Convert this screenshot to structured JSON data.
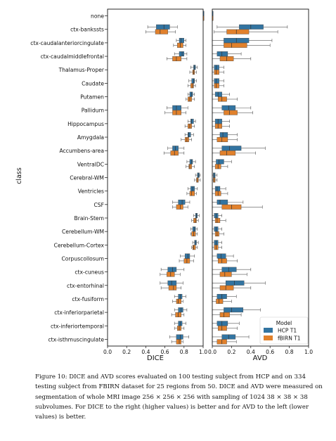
{
  "chart_data": {
    "type": "boxplot",
    "ylabel": "class",
    "categories": [
      "none",
      "ctx-bankssts",
      "ctx-caudalanteriorcingulate",
      "ctx-caudalmiddlefrontal",
      "Thalamus-Proper",
      "Caudate",
      "Putamen",
      "Pallidum",
      "Hippocampus",
      "Amygdala",
      "Accumbens-area",
      "VentralDC",
      "Cerebral-WM",
      "Ventricles",
      "CSF",
      "Brain-Stem",
      "Cerebellum-WM",
      "Cerebellum-Cortex",
      "Corpuscollosum",
      "ctx-cuneus",
      "ctx-entorhinal",
      "ctx-fusiform",
      "ctx-inferiorparietal",
      "ctx-inferiortemporal",
      "ctx-isthmuscingulate"
    ],
    "legend": {
      "title": "Model",
      "position": "bottom-right",
      "entries": [
        "HCP T1",
        "fBIRN T1"
      ]
    },
    "colors": {
      "hcp": "#3274a1",
      "fbirn": "#e1812c",
      "whisker": "#555555",
      "outlier": "#555555"
    },
    "panels": [
      {
        "xlabel": "DICE",
        "xlim": [
          0,
          1
        ],
        "ticks": [
          "0.0",
          "0.2",
          "0.4",
          "0.6",
          "0.8",
          "1.0"
        ],
        "series": [
          {
            "name": "HCP T1",
            "stats": [
              [
                1.0,
                1.0,
                1.0,
                1.0,
                1.0
              ],
              [
                0.42,
                0.51,
                0.59,
                0.65,
                0.73
              ],
              [
                0.72,
                0.75,
                0.77,
                0.8,
                0.82
              ],
              [
                0.7,
                0.75,
                0.78,
                0.8,
                0.83
              ],
              [
                0.87,
                0.9,
                0.91,
                0.92,
                0.94
              ],
              [
                0.85,
                0.88,
                0.9,
                0.91,
                0.93
              ],
              [
                0.84,
                0.86,
                0.88,
                0.89,
                0.91
              ],
              [
                0.62,
                0.68,
                0.72,
                0.77,
                0.84
              ],
              [
                0.84,
                0.87,
                0.88,
                0.9,
                0.92
              ],
              [
                0.81,
                0.84,
                0.85,
                0.87,
                0.9
              ],
              [
                0.63,
                0.68,
                0.71,
                0.74,
                0.8
              ],
              [
                0.83,
                0.86,
                0.88,
                0.89,
                0.92
              ],
              [
                0.92,
                0.94,
                0.95,
                0.96,
                0.97
              ],
              [
                0.84,
                0.87,
                0.89,
                0.91,
                0.94
              ],
              [
                0.68,
                0.74,
                0.78,
                0.81,
                0.86
              ],
              [
                0.9,
                0.92,
                0.93,
                0.94,
                0.96
              ],
              [
                0.87,
                0.89,
                0.91,
                0.92,
                0.94
              ],
              [
                0.89,
                0.91,
                0.92,
                0.93,
                0.95
              ],
              [
                0.76,
                0.81,
                0.84,
                0.86,
                0.91
              ],
              [
                0.56,
                0.63,
                0.68,
                0.72,
                0.8
              ],
              [
                0.55,
                0.63,
                0.67,
                0.72,
                0.79
              ],
              [
                0.7,
                0.74,
                0.76,
                0.78,
                0.82
              ],
              [
                0.7,
                0.74,
                0.77,
                0.79,
                0.83
              ],
              [
                0.7,
                0.74,
                0.76,
                0.78,
                0.82
              ],
              [
                0.65,
                0.72,
                0.76,
                0.79,
                0.85
              ]
            ]
          },
          {
            "name": "fBIRN T1",
            "stats": [
              [
                1.0,
                1.0,
                1.0,
                1.0,
                1.0
              ],
              [
                0.4,
                0.5,
                0.55,
                0.63,
                0.71
              ],
              [
                0.69,
                0.73,
                0.76,
                0.79,
                0.82
              ],
              [
                0.62,
                0.68,
                0.72,
                0.77,
                0.83
              ],
              [
                0.86,
                0.89,
                0.9,
                0.91,
                0.93
              ],
              [
                0.84,
                0.87,
                0.89,
                0.9,
                0.92
              ],
              [
                0.82,
                0.84,
                0.86,
                0.88,
                0.91
              ],
              [
                0.6,
                0.68,
                0.72,
                0.77,
                0.82
              ],
              [
                0.81,
                0.84,
                0.86,
                0.88,
                0.91
              ],
              [
                0.77,
                0.81,
                0.83,
                0.85,
                0.88
              ],
              [
                0.59,
                0.66,
                0.7,
                0.74,
                0.8
              ],
              [
                0.82,
                0.85,
                0.86,
                0.88,
                0.91
              ],
              [
                0.91,
                0.93,
                0.94,
                0.95,
                0.97
              ],
              [
                0.83,
                0.86,
                0.88,
                0.91,
                0.93
              ],
              [
                0.68,
                0.72,
                0.76,
                0.79,
                0.84
              ],
              [
                0.88,
                0.9,
                0.92,
                0.93,
                0.95
              ],
              [
                0.87,
                0.88,
                0.9,
                0.92,
                0.94
              ],
              [
                0.88,
                0.89,
                0.9,
                0.92,
                0.94
              ],
              [
                0.75,
                0.8,
                0.83,
                0.86,
                0.9
              ],
              [
                0.55,
                0.62,
                0.66,
                0.7,
                0.76
              ],
              [
                0.56,
                0.64,
                0.69,
                0.72,
                0.77
              ],
              [
                0.68,
                0.72,
                0.74,
                0.77,
                0.79
              ],
              [
                0.67,
                0.71,
                0.74,
                0.77,
                0.8
              ],
              [
                0.7,
                0.73,
                0.75,
                0.77,
                0.8
              ],
              [
                0.67,
                0.72,
                0.75,
                0.77,
                0.79
              ]
            ]
          }
        ]
      },
      {
        "xlabel": "AVD",
        "xlim": [
          0,
          1
        ],
        "ticks": [
          "0.0",
          "0.2",
          "0.4",
          "0.6",
          "0.8",
          "1.0"
        ],
        "series": [
          {
            "name": "HCP T1",
            "stats": [
              [
                0.0,
                0.0,
                0.0,
                0.0,
                0.0
              ],
              [
                0.05,
                0.28,
                0.4,
                0.53,
                0.78
              ],
              [
                0.0,
                0.12,
                0.25,
                0.38,
                0.62
              ],
              [
                0.0,
                0.05,
                0.1,
                0.16,
                0.3
              ],
              [
                0.0,
                0.02,
                0.04,
                0.07,
                0.12
              ],
              [
                0.0,
                0.02,
                0.04,
                0.07,
                0.12
              ],
              [
                0.0,
                0.03,
                0.06,
                0.1,
                0.18
              ],
              [
                0.0,
                0.1,
                0.17,
                0.24,
                0.4
              ],
              [
                0.0,
                0.03,
                0.06,
                0.1,
                0.18
              ],
              [
                0.0,
                0.08,
                0.11,
                0.16,
                0.26
              ],
              [
                0.0,
                0.1,
                0.18,
                0.3,
                0.55
              ],
              [
                0.0,
                0.04,
                0.07,
                0.12,
                0.2
              ],
              [
                0.0,
                0.01,
                0.02,
                0.03,
                0.05
              ],
              [
                0.0,
                0.03,
                0.05,
                0.08,
                0.14
              ],
              [
                0.0,
                0.05,
                0.08,
                0.16,
                0.32
              ],
              [
                0.0,
                0.02,
                0.04,
                0.06,
                0.1
              ],
              [
                0.0,
                0.02,
                0.04,
                0.06,
                0.1
              ],
              [
                0.0,
                0.02,
                0.04,
                0.06,
                0.1
              ],
              [
                0.0,
                0.05,
                0.09,
                0.14,
                0.22
              ],
              [
                0.0,
                0.1,
                0.17,
                0.25,
                0.4
              ],
              [
                0.0,
                0.14,
                0.23,
                0.33,
                0.55
              ],
              [
                0.0,
                0.05,
                0.1,
                0.15,
                0.25
              ],
              [
                0.0,
                0.12,
                0.2,
                0.32,
                0.5
              ],
              [
                0.0,
                0.05,
                0.1,
                0.16,
                0.28
              ],
              [
                0.0,
                0.1,
                0.17,
                0.24,
                0.38
              ]
            ]
          },
          {
            "name": "fBIRN T1",
            "stats": [
              [
                0.0,
                0.0,
                0.0,
                0.0,
                0.0
              ],
              [
                0.02,
                0.15,
                0.25,
                0.38,
                0.68
              ],
              [
                0.0,
                0.12,
                0.2,
                0.36,
                0.6
              ],
              [
                0.0,
                0.08,
                0.15,
                0.22,
                0.4
              ],
              [
                0.0,
                0.02,
                0.04,
                0.07,
                0.12
              ],
              [
                0.0,
                0.02,
                0.04,
                0.07,
                0.12
              ],
              [
                0.0,
                0.06,
                0.1,
                0.15,
                0.26
              ],
              [
                0.0,
                0.12,
                0.18,
                0.26,
                0.42
              ],
              [
                0.0,
                0.03,
                0.06,
                0.1,
                0.18
              ],
              [
                0.0,
                0.05,
                0.1,
                0.16,
                0.26
              ],
              [
                0.0,
                0.08,
                0.15,
                0.24,
                0.45
              ],
              [
                0.0,
                0.03,
                0.06,
                0.09,
                0.16
              ],
              [
                0.0,
                0.01,
                0.02,
                0.03,
                0.05
              ],
              [
                0.0,
                0.03,
                0.06,
                0.09,
                0.16
              ],
              [
                0.0,
                0.1,
                0.2,
                0.3,
                0.52
              ],
              [
                0.0,
                0.03,
                0.05,
                0.08,
                0.14
              ],
              [
                0.0,
                0.03,
                0.05,
                0.07,
                0.12
              ],
              [
                0.0,
                0.02,
                0.04,
                0.06,
                0.1
              ],
              [
                0.0,
                0.06,
                0.1,
                0.15,
                0.26
              ],
              [
                0.0,
                0.08,
                0.13,
                0.2,
                0.36
              ],
              [
                0.0,
                0.08,
                0.14,
                0.22,
                0.4
              ],
              [
                0.0,
                0.04,
                0.07,
                0.11,
                0.2
              ],
              [
                0.0,
                0.08,
                0.12,
                0.18,
                0.3
              ],
              [
                0.0,
                0.06,
                0.1,
                0.15,
                0.26
              ],
              [
                0.0,
                0.05,
                0.1,
                0.15,
                0.25
              ]
            ]
          }
        ]
      }
    ]
  },
  "caption": "Figure 10: DICE and AVD scores evaluated on 100 testing subject from HCP and on 334 testing subject from FBIRN dataset for 25 regions from 50. DICE and AVD were measured on segmentation of whole MRI image 256 × 256 × 256 with sampling of 1024 38 × 38 × 38 subvolumes. For DICE to the right (higher values) is better and for AVD to the left (lower values) is better."
}
